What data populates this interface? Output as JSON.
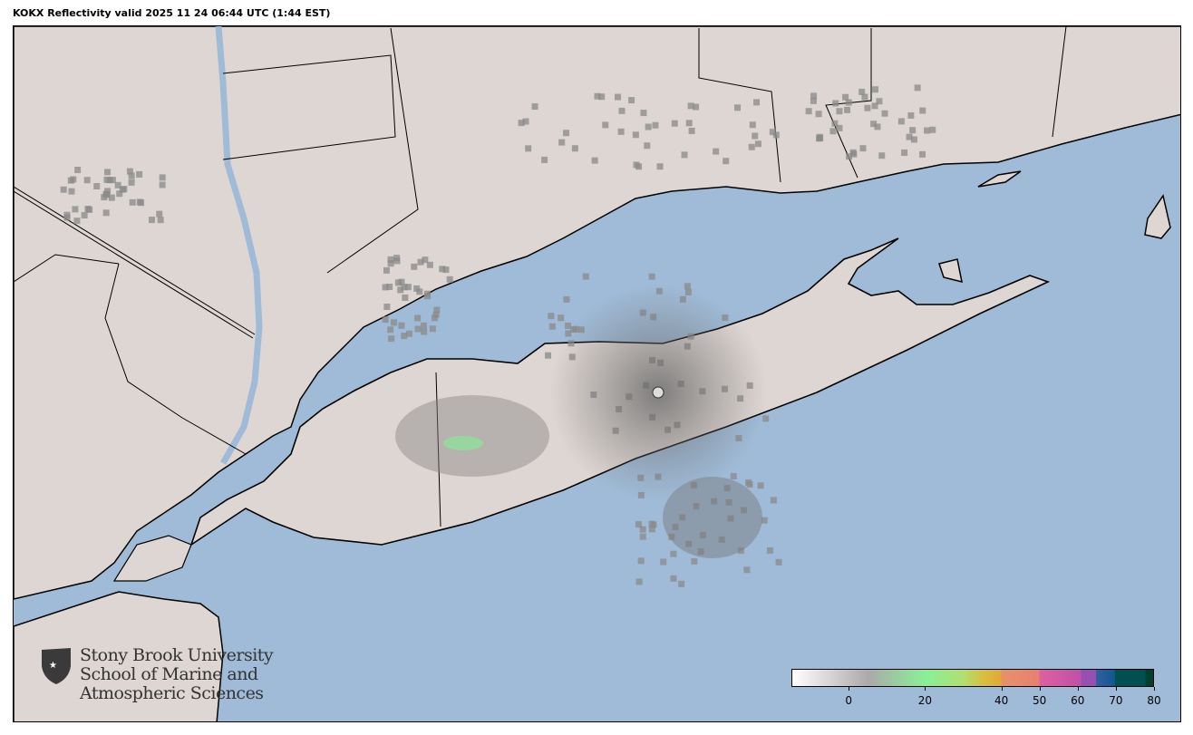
{
  "title": "KOKX Reflectivity valid 2025 11 24 06:44 UTC (1:44 EST)",
  "colors": {
    "water": "#9fbbd7",
    "land": "#ded6d2",
    "border": "#000000",
    "echo": "#8a8a8a"
  },
  "logo": {
    "line1": "Stony Brook University",
    "line2": "School of Marine and",
    "line3": "Atmospheric Sciences",
    "icon": "shield-star-icon"
  },
  "colorbar": {
    "min": -15,
    "max": 80,
    "ticks": [
      "0",
      "20",
      "40",
      "50",
      "60",
      "70",
      "80"
    ],
    "tick_values": [
      0,
      20,
      40,
      50,
      60,
      70,
      80
    ],
    "stops": [
      {
        "v": -15,
        "c": "#ffffff"
      },
      {
        "v": 5,
        "c": "#aaaaaa"
      },
      {
        "v": 20,
        "c": "#88f098"
      },
      {
        "v": 30,
        "c": "#b0e070"
      },
      {
        "v": 35,
        "c": "#d8c040"
      },
      {
        "v": 40,
        "c": "#e0a838"
      },
      {
        "v": 40.01,
        "c": "#e8906a"
      },
      {
        "v": 50,
        "c": "#e88070"
      },
      {
        "v": 50.01,
        "c": "#e060a0"
      },
      {
        "v": 61,
        "c": "#c050a8"
      },
      {
        "v": 61.01,
        "c": "#9850b0"
      },
      {
        "v": 65,
        "c": "#9850b0"
      },
      {
        "v": 65.01,
        "c": "#3060a0"
      },
      {
        "v": 70,
        "c": "#105890"
      },
      {
        "v": 70.01,
        "c": "#005050"
      },
      {
        "v": 78,
        "c": "#005050"
      },
      {
        "v": 78.01,
        "c": "#004030"
      },
      {
        "v": 80,
        "c": "#004030"
      }
    ]
  }
}
